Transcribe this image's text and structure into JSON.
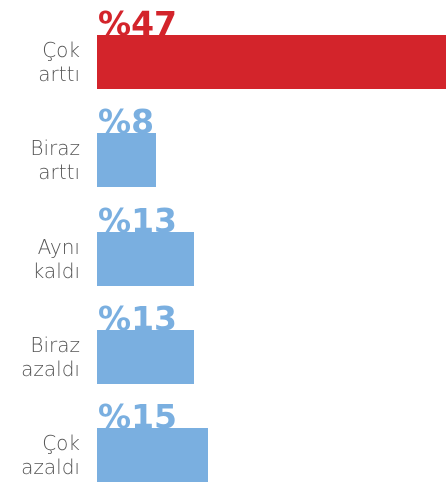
{
  "chart_data": {
    "type": "bar",
    "orientation": "horizontal",
    "categories": [
      "Çok arttı",
      "Biraz arttı",
      "Aynı kaldı",
      "Biraz azaldı",
      "Çok azaldı"
    ],
    "values": [
      47,
      8,
      13,
      13,
      15
    ],
    "value_labels": [
      "%47",
      "%8",
      "%13",
      "%13",
      "%15"
    ],
    "colors": [
      "#d3242b",
      "#7aafe0",
      "#7aafe0",
      "#7aafe0",
      "#7aafe0"
    ]
  }
}
